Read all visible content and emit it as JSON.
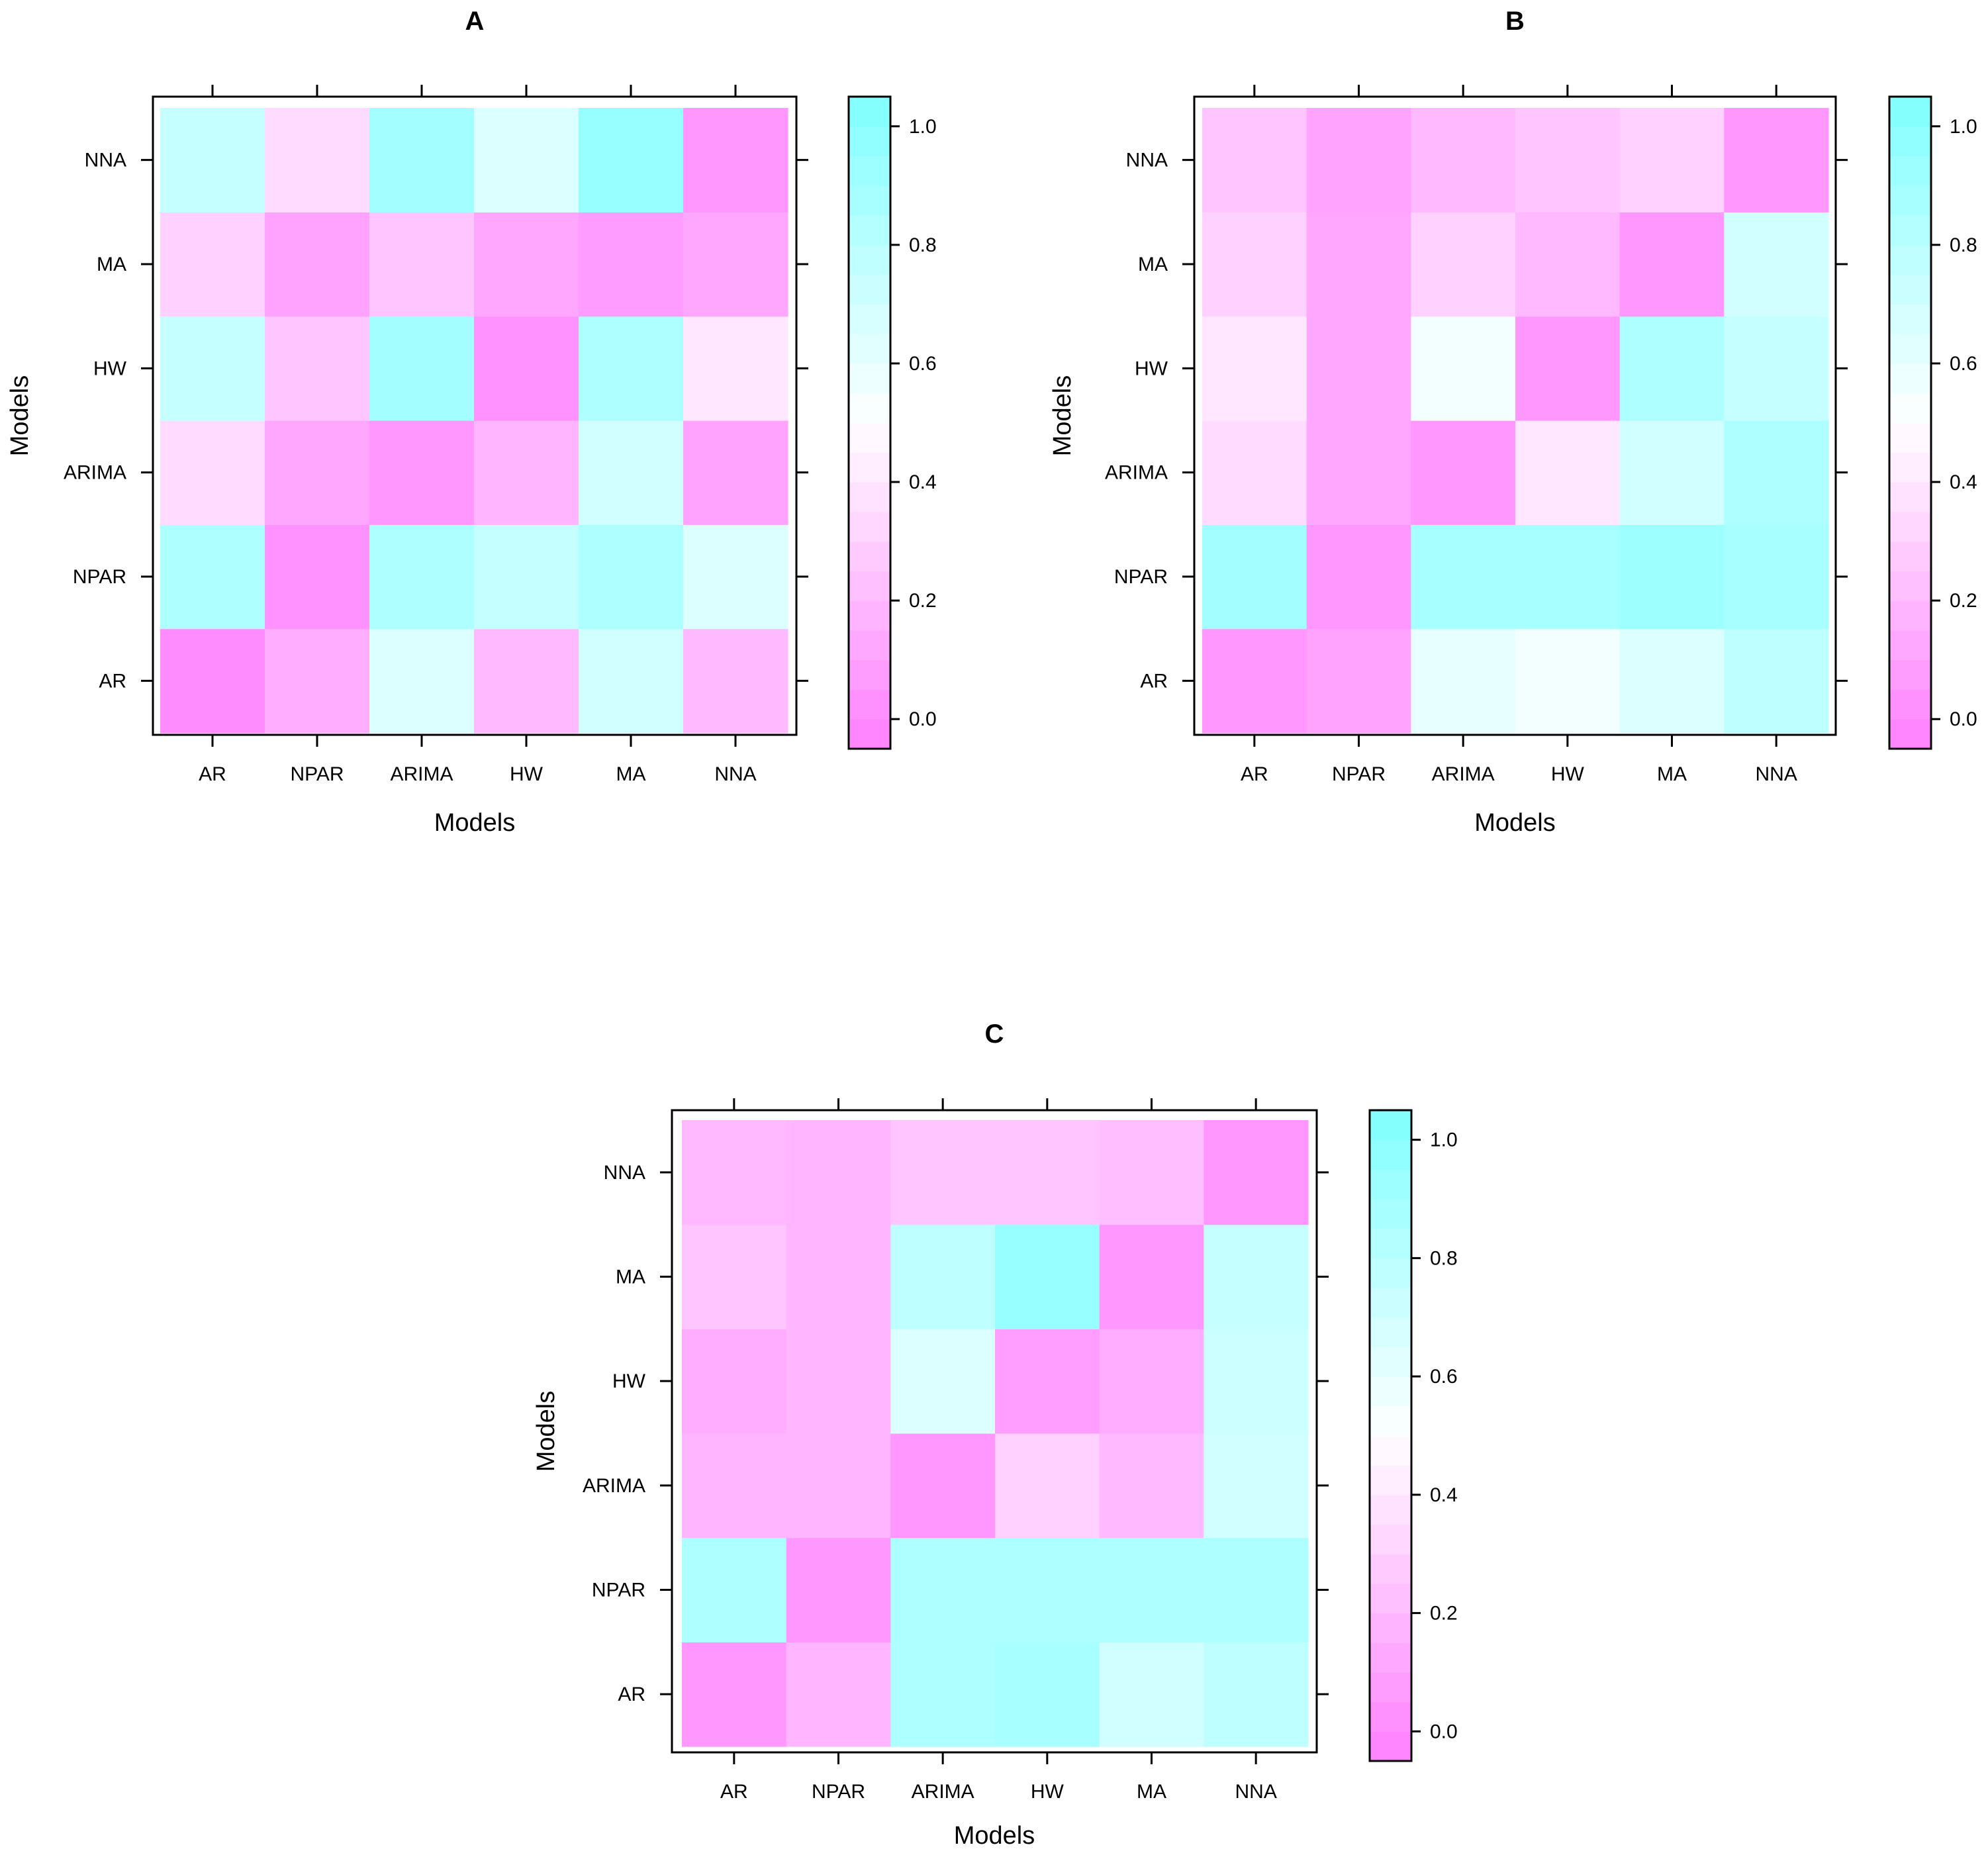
{
  "chart_data": [
    {
      "type": "heatmap",
      "title": "A",
      "xlabel": "Models",
      "ylabel": "Models",
      "x_categories": [
        "AR",
        "NPAR",
        "ARIMA",
        "HW",
        "MA",
        "NNA"
      ],
      "y_categories": [
        "AR",
        "NPAR",
        "ARIMA",
        "HW",
        "MA",
        "NNA"
      ],
      "values": [
        [
          0.0,
          0.15,
          0.65,
          0.2,
          0.7,
          0.2
        ],
        [
          0.85,
          0.03,
          0.85,
          0.75,
          0.85,
          0.65
        ],
        [
          0.35,
          0.12,
          0.05,
          0.18,
          0.7,
          0.1
        ],
        [
          0.75,
          0.25,
          0.9,
          0.03,
          0.85,
          0.4
        ],
        [
          0.3,
          0.1,
          0.25,
          0.12,
          0.07,
          0.12
        ],
        [
          0.75,
          0.35,
          0.9,
          0.65,
          0.95,
          0.05
        ]
      ],
      "zlim": [
        -0.05,
        1.05
      ],
      "colorbar_ticks": [
        "0.0",
        "0.2",
        "0.4",
        "0.6",
        "0.8",
        "1.0"
      ],
      "colorbar_values": [
        0.0,
        0.2,
        0.4,
        0.6,
        0.8,
        1.0
      ]
    },
    {
      "type": "heatmap",
      "title": "B",
      "xlabel": "Models",
      "ylabel": "Models",
      "x_categories": [
        "AR",
        "NPAR",
        "ARIMA",
        "HW",
        "MA",
        "NNA"
      ],
      "y_categories": [
        "AR",
        "NPAR",
        "ARIMA",
        "HW",
        "MA",
        "NNA"
      ],
      "values": [
        [
          0.05,
          0.1,
          0.6,
          0.55,
          0.65,
          0.78
        ],
        [
          0.9,
          0.05,
          0.88,
          0.88,
          0.92,
          0.88
        ],
        [
          0.35,
          0.12,
          0.05,
          0.4,
          0.7,
          0.85
        ],
        [
          0.4,
          0.12,
          0.55,
          0.05,
          0.85,
          0.75
        ],
        [
          0.3,
          0.12,
          0.3,
          0.2,
          0.05,
          0.7
        ],
        [
          0.25,
          0.1,
          0.2,
          0.25,
          0.3,
          0.05
        ]
      ],
      "zlim": [
        -0.05,
        1.05
      ],
      "colorbar_ticks": [
        "0.0",
        "0.2",
        "0.4",
        "0.6",
        "0.8",
        "1.0"
      ],
      "colorbar_values": [
        0.0,
        0.2,
        0.4,
        0.6,
        0.8,
        1.0
      ]
    },
    {
      "type": "heatmap",
      "title": "C",
      "xlabel": "Models",
      "ylabel": "Models",
      "x_categories": [
        "AR",
        "NPAR",
        "ARIMA",
        "HW",
        "MA",
        "NNA"
      ],
      "y_categories": [
        "AR",
        "NPAR",
        "ARIMA",
        "HW",
        "MA",
        "NNA"
      ],
      "values": [
        [
          0.05,
          0.18,
          0.85,
          0.88,
          0.7,
          0.78
        ],
        [
          0.85,
          0.05,
          0.85,
          0.85,
          0.85,
          0.85
        ],
        [
          0.18,
          0.18,
          0.05,
          0.3,
          0.2,
          0.7
        ],
        [
          0.15,
          0.18,
          0.65,
          0.08,
          0.15,
          0.72
        ],
        [
          0.25,
          0.18,
          0.78,
          0.95,
          0.05,
          0.75
        ],
        [
          0.2,
          0.18,
          0.25,
          0.25,
          0.22,
          0.05
        ]
      ],
      "zlim": [
        -0.05,
        1.05
      ],
      "colorbar_ticks": [
        "0.0",
        "0.2",
        "0.4",
        "0.6",
        "0.8",
        "1.0"
      ],
      "colorbar_values": [
        0.0,
        0.2,
        0.4,
        0.6,
        0.8,
        1.0
      ]
    }
  ],
  "colors": {
    "low": "#ff80ff",
    "mid": "#ffffff",
    "high": "#80ffff",
    "frame": "#000000"
  }
}
